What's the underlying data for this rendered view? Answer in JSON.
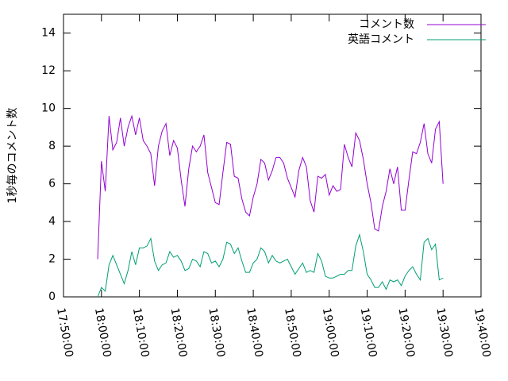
{
  "chart_data": {
    "type": "line",
    "y_label": "1秒毎のコメント数",
    "x": [
      "17:59:00",
      "18:00:00",
      "18:01:00",
      "18:02:00",
      "18:03:00",
      "18:04:00",
      "18:05:00",
      "18:06:00",
      "18:07:00",
      "18:08:00",
      "18:09:00",
      "18:10:00",
      "18:11:00",
      "18:12:00",
      "18:13:00",
      "18:14:00",
      "18:15:00",
      "18:16:00",
      "18:17:00",
      "18:18:00",
      "18:19:00",
      "18:20:00",
      "18:21:00",
      "18:22:00",
      "18:23:00",
      "18:24:00",
      "18:25:00",
      "18:26:00",
      "18:27:00",
      "18:28:00",
      "18:29:00",
      "18:30:00",
      "18:31:00",
      "18:32:00",
      "18:33:00",
      "18:34:00",
      "18:35:00",
      "18:36:00",
      "18:37:00",
      "18:38:00",
      "18:39:00",
      "18:40:00",
      "18:41:00",
      "18:42:00",
      "18:43:00",
      "18:44:00",
      "18:45:00",
      "18:46:00",
      "18:47:00",
      "18:48:00",
      "18:49:00",
      "18:50:00",
      "18:51:00",
      "18:52:00",
      "18:53:00",
      "18:54:00",
      "18:55:00",
      "18:56:00",
      "18:57:00",
      "18:58:00",
      "18:59:00",
      "19:00:00",
      "19:01:00",
      "19:02:00",
      "19:03:00",
      "19:04:00",
      "19:05:00",
      "19:06:00",
      "19:07:00",
      "19:08:00",
      "19:09:00",
      "19:10:00",
      "19:11:00",
      "19:12:00",
      "19:13:00",
      "19:14:00",
      "19:15:00",
      "19:16:00",
      "19:17:00",
      "19:18:00",
      "19:19:00",
      "19:20:00",
      "19:21:00",
      "19:22:00",
      "19:23:00",
      "19:24:00",
      "19:25:00",
      "19:26:00",
      "19:27:00",
      "19:28:00",
      "19:29:00",
      "19:30:00"
    ],
    "series": [
      {
        "name": "コメント数",
        "color": "#9400d3",
        "values": [
          2.0,
          7.2,
          5.6,
          9.6,
          7.8,
          8.2,
          9.5,
          8.0,
          9.0,
          9.6,
          8.6,
          9.5,
          8.3,
          8.0,
          7.6,
          5.9,
          8.0,
          8.8,
          9.2,
          7.5,
          8.3,
          7.9,
          6.2,
          4.8,
          6.8,
          8.0,
          7.7,
          8.0,
          8.6,
          6.6,
          5.8,
          5.0,
          4.9,
          6.6,
          8.2,
          8.1,
          6.4,
          6.3,
          5.2,
          4.5,
          4.3,
          5.3,
          6.0,
          7.3,
          7.1,
          6.2,
          6.7,
          7.4,
          7.4,
          7.1,
          6.3,
          5.8,
          5.3,
          6.7,
          7.4,
          6.9,
          5.1,
          4.5,
          6.4,
          6.3,
          6.5,
          5.4,
          5.9,
          5.6,
          5.7,
          8.1,
          7.4,
          6.9,
          8.7,
          8.3,
          7.3,
          6.0,
          5.0,
          3.6,
          3.5,
          4.8,
          5.6,
          6.8,
          6.0,
          6.9,
          4.6,
          4.6,
          6.2,
          7.7,
          7.6,
          8.2,
          9.2,
          7.6,
          7.1,
          8.9,
          9.3,
          6.0
        ]
      },
      {
        "name": "英語コメント",
        "color": "#009e73",
        "values": [
          0,
          0.5,
          0.3,
          1.7,
          2.2,
          1.7,
          1.2,
          0.7,
          1.4,
          2.4,
          1.7,
          2.6,
          2.6,
          2.7,
          3.1,
          1.9,
          1.4,
          1.7,
          1.8,
          2.4,
          2.1,
          2.2,
          1.9,
          1.4,
          1.5,
          2.0,
          1.9,
          1.6,
          2.4,
          2.3,
          1.8,
          1.9,
          1.6,
          2.0,
          2.9,
          2.8,
          2.3,
          2.6,
          1.9,
          1.3,
          1.3,
          1.8,
          2.0,
          2.6,
          2.4,
          1.8,
          2.2,
          1.9,
          1.8,
          1.9,
          2.0,
          1.6,
          1.2,
          1.5,
          1.8,
          1.3,
          1.4,
          1.3,
          2.3,
          1.9,
          1.1,
          1.0,
          1.0,
          1.1,
          1.2,
          1.2,
          1.4,
          1.4,
          2.7,
          3.3,
          2.4,
          1.2,
          0.9,
          0.5,
          0.5,
          0.8,
          0.4,
          0.9,
          0.8,
          0.9,
          0.6,
          1.1,
          1.4,
          1.6,
          1.2,
          0.9,
          2.9,
          3.1,
          2.5,
          2.8,
          0.9,
          1.0
        ]
      }
    ],
    "xlim": [
      "17:50:00",
      "19:40:00"
    ],
    "xticks": [
      "17:50:00",
      "18:00:00",
      "18:10:00",
      "18:20:00",
      "18:30:00",
      "18:40:00",
      "18:50:00",
      "19:00:00",
      "19:10:00",
      "19:20:00",
      "19:30:00",
      "19:40:00"
    ],
    "ylim": [
      0,
      15
    ],
    "yticks": [
      0,
      2,
      4,
      6,
      8,
      10,
      12,
      14
    ],
    "grid": false,
    "legend": "top-right"
  }
}
